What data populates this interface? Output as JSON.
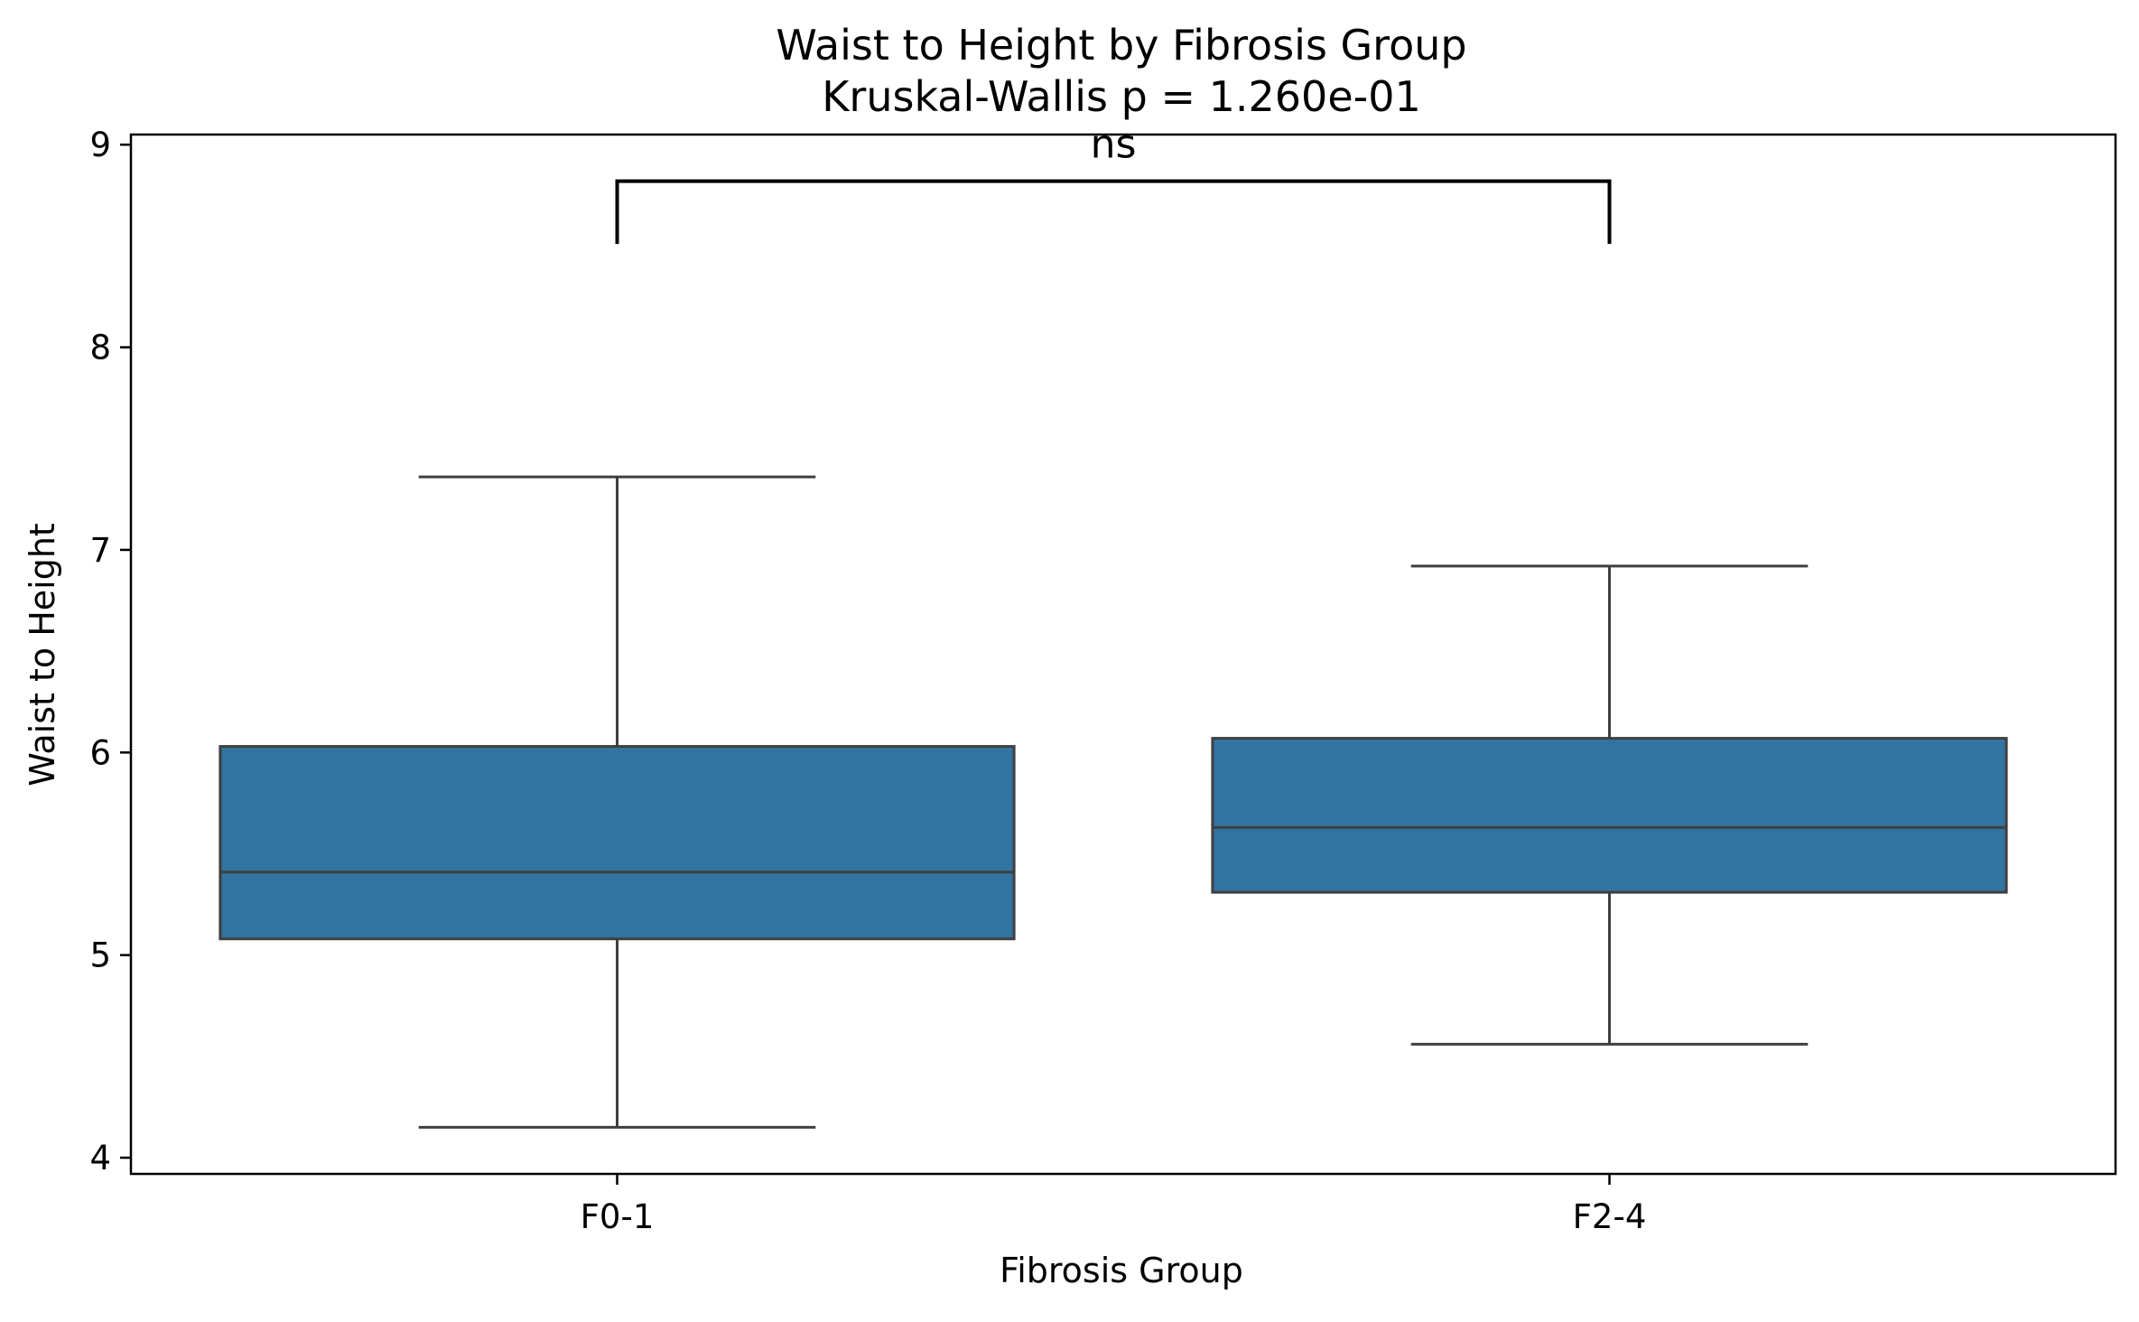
{
  "chart_data": {
    "type": "box",
    "title": "Waist to Height by Fibrosis Group",
    "subtitle": "Kruskal-Wallis p = 1.260e-01",
    "xlabel": "Fibrosis Group",
    "ylabel": "Waist to Height",
    "ylim": [
      3.92,
      9.05
    ],
    "yticks": [
      "4",
      "5",
      "6",
      "7",
      "8",
      "9"
    ],
    "categories": [
      "F0-1",
      "F2-4"
    ],
    "boxes": [
      {
        "category": "F0-1",
        "whisker_low": 4.15,
        "q1": 5.08,
        "median": 5.41,
        "q3": 6.03,
        "whisker_high": 7.36
      },
      {
        "category": "F2-4",
        "whisker_low": 4.56,
        "q1": 5.31,
        "median": 5.63,
        "q3": 6.07,
        "whisker_high": 6.92
      }
    ],
    "significance": {
      "label": "ns",
      "from": "F0-1",
      "to": "F2-4",
      "y_top": 8.82,
      "y_bottom": 8.51
    },
    "box_color": "#3274a1",
    "line_color": "#3f3f3f",
    "grid": false,
    "legend": "none"
  }
}
